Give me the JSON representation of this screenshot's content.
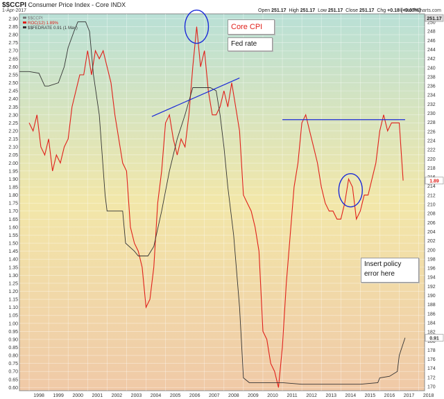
{
  "header": {
    "ticker": "$$CCPI",
    "title": "Consumer Price Index - Core INDX",
    "date": "1-Apr-2017",
    "ohlc": [
      {
        "label": "Open",
        "value": "251.17"
      },
      {
        "label": "High",
        "value": "251.17"
      },
      {
        "label": "Low",
        "value": "251.17"
      },
      {
        "label": "Close",
        "value": "251.17"
      },
      {
        "label": "Chg",
        "value": "+0.18 (+0.07%)"
      }
    ],
    "brand": "© StockCharts.com"
  },
  "legend": [
    {
      "label": "$$CCPI",
      "color": "#777777"
    },
    {
      "label": "ROC(12) 1.89%",
      "color": "#e0201a"
    },
    {
      "label": "$$FEDRATE 0.91 (1 May)",
      "color": "#333333"
    }
  ],
  "callouts": {
    "core_cpi": "Core CPI",
    "fed_rate": "Fed rate",
    "policy_error": "Insert policy\nerror here"
  },
  "badges": {
    "cpi": "251.17",
    "roc": "1.89",
    "fed": "0.91"
  },
  "colors": {
    "roc": "#e0201a",
    "fed": "#333333",
    "annotation": "#1a2ad8",
    "bg_top": "#b9e0d6",
    "bg_mid": "#f2e7a9",
    "bg_bottom": "#f0c9a7"
  },
  "chart_data": {
    "type": "line",
    "xlim": [
      1997.5,
      2018.3
    ],
    "x_ticks": [
      "1998",
      "1999",
      "2000",
      "2001",
      "2002",
      "2003",
      "2004",
      "2005",
      "2006",
      "2007",
      "2008",
      "2009",
      "2010",
      "2011",
      "2012",
      "2013",
      "2014",
      "2015",
      "2016",
      "2017",
      "2018"
    ],
    "left_axis": {
      "ylim": [
        0.58,
        2.93
      ],
      "ticks": [
        "0.60",
        "0.65",
        "0.70",
        "0.75",
        "0.80",
        "0.85",
        "0.90",
        "0.95",
        "1.00",
        "1.05",
        "1.10",
        "1.15",
        "1.20",
        "1.25",
        "1.30",
        "1.35",
        "1.40",
        "1.45",
        "1.50",
        "1.55",
        "1.60",
        "1.65",
        "1.70",
        "1.75",
        "1.80",
        "1.85",
        "1.90",
        "1.95",
        "2.00",
        "2.05",
        "2.10",
        "2.15",
        "2.20",
        "2.25",
        "2.30",
        "2.35",
        "2.40",
        "2.45",
        "2.50",
        "2.55",
        "2.60",
        "2.65",
        "2.70",
        "2.75",
        "2.80",
        "2.85",
        "2.90"
      ]
    },
    "right_axis": {
      "ticks": [
        "170",
        "172",
        "174",
        "176",
        "178",
        "180",
        "182",
        "184",
        "186",
        "188",
        "190",
        "192",
        "194",
        "196",
        "198",
        "200",
        "202",
        "204",
        "206",
        "208",
        "210",
        "212",
        "214",
        "216",
        "218",
        "220",
        "222",
        "224",
        "226",
        "228",
        "230",
        "232",
        "234",
        "236",
        "238",
        "240",
        "242",
        "244",
        "246",
        "248",
        "250"
      ]
    },
    "series": [
      {
        "name": "ROC(12) 1.89%",
        "x": [
          1998.0,
          1998.2,
          1998.4,
          1998.6,
          1998.8,
          1999.0,
          1999.2,
          1999.4,
          1999.6,
          1999.8,
          2000.0,
          2000.2,
          2000.4,
          2000.6,
          2000.8,
          2001.0,
          2001.2,
          2001.4,
          2001.6,
          2001.8,
          2002.0,
          2002.2,
          2002.4,
          2002.6,
          2002.8,
          2003.0,
          2003.2,
          2003.4,
          2003.6,
          2003.8,
          2004.0,
          2004.2,
          2004.4,
          2004.6,
          2004.8,
          2005.0,
          2005.2,
          2005.4,
          2005.6,
          2005.8,
          2006.0,
          2006.2,
          2006.4,
          2006.6,
          2006.8,
          2007.0,
          2007.2,
          2007.4,
          2007.6,
          2007.8,
          2008.0,
          2008.2,
          2008.4,
          2008.6,
          2008.8,
          2009.0,
          2009.2,
          2009.4,
          2009.6,
          2009.8,
          2010.0,
          2010.2,
          2010.4,
          2010.6,
          2010.8,
          2011.0,
          2011.2,
          2011.4,
          2011.6,
          2011.8,
          2012.0,
          2012.2,
          2012.4,
          2012.6,
          2012.8,
          2013.0,
          2013.2,
          2013.4,
          2013.6,
          2013.8,
          2014.0,
          2014.2,
          2014.4,
          2014.6,
          2014.8,
          2015.0,
          2015.2,
          2015.4,
          2015.6,
          2015.8,
          2016.0,
          2016.2,
          2016.4,
          2016.6,
          2016.8,
          2017.0,
          2017.2
        ],
        "y": [
          2.25,
          2.2,
          2.3,
          2.1,
          2.05,
          2.15,
          1.95,
          2.05,
          2.0,
          2.1,
          2.15,
          2.35,
          2.45,
          2.55,
          2.55,
          2.7,
          2.55,
          2.7,
          2.65,
          2.7,
          2.6,
          2.5,
          2.3,
          2.15,
          2.0,
          1.95,
          1.6,
          1.5,
          1.45,
          1.35,
          1.1,
          1.15,
          1.35,
          1.75,
          1.95,
          2.25,
          2.3,
          2.15,
          2.05,
          2.15,
          2.1,
          2.3,
          2.6,
          2.85,
          2.6,
          2.7,
          2.45,
          2.3,
          2.3,
          2.35,
          2.45,
          2.35,
          2.5,
          2.35,
          2.2,
          1.8,
          1.75,
          1.7,
          1.6,
          1.45,
          0.95,
          0.9,
          0.75,
          0.7,
          0.6,
          0.85,
          1.25,
          1.55,
          1.85,
          2.0,
          2.25,
          2.3,
          2.2,
          2.1,
          2.0,
          1.85,
          1.75,
          1.7,
          1.7,
          1.65,
          1.65,
          1.75,
          1.9,
          1.85,
          1.65,
          1.7,
          1.8,
          1.8,
          1.9,
          2.0,
          2.2,
          2.3,
          2.2,
          2.25,
          2.25,
          2.25,
          1.89
        ]
      },
      {
        "name": "$$FEDRATE 0.91 (1 May)",
        "x": [
          1997.5,
          1998.0,
          1998.5,
          1998.8,
          1999.0,
          1999.5,
          1999.8,
          2000.0,
          2000.3,
          2000.5,
          2000.9,
          2001.1,
          2001.3,
          2001.6,
          2001.9,
          2002.0,
          2002.8,
          2002.95,
          2003.4,
          2003.6,
          2004.1,
          2004.4,
          2004.8,
          2005.2,
          2005.6,
          2006.0,
          2006.4,
          2006.7,
          2007.3,
          2007.6,
          2007.8,
          2008.0,
          2008.2,
          2008.5,
          2008.8,
          2009.0,
          2009.3,
          2010.0,
          2011.0,
          2012.0,
          2013.0,
          2014.0,
          2015.0,
          2015.9,
          2016.0,
          2016.5,
          2016.9,
          2017.0,
          2017.3
        ],
        "y": [
          2.57,
          2.57,
          2.56,
          2.48,
          2.48,
          2.5,
          2.6,
          2.72,
          2.82,
          2.88,
          2.88,
          2.82,
          2.55,
          2.3,
          1.8,
          1.7,
          1.7,
          1.5,
          1.45,
          1.42,
          1.42,
          1.48,
          1.7,
          1.95,
          2.15,
          2.3,
          2.47,
          2.47,
          2.47,
          2.45,
          2.3,
          2.1,
          1.85,
          1.55,
          1.1,
          0.66,
          0.63,
          0.63,
          0.63,
          0.62,
          0.62,
          0.62,
          0.62,
          0.63,
          0.66,
          0.67,
          0.7,
          0.8,
          0.91
        ]
      }
    ],
    "annotations": [
      {
        "type": "circle",
        "x": 2006.6,
        "y": 2.85
      },
      {
        "type": "circle",
        "x": 2014.5,
        "y": 1.83
      },
      {
        "type": "trendline",
        "x": [
          2004.3,
          2008.8
        ],
        "y": [
          2.29,
          2.53
        ]
      },
      {
        "type": "hline",
        "x": [
          2011.0,
          2017.3
        ],
        "y": [
          2.27,
          2.27
        ]
      }
    ]
  }
}
